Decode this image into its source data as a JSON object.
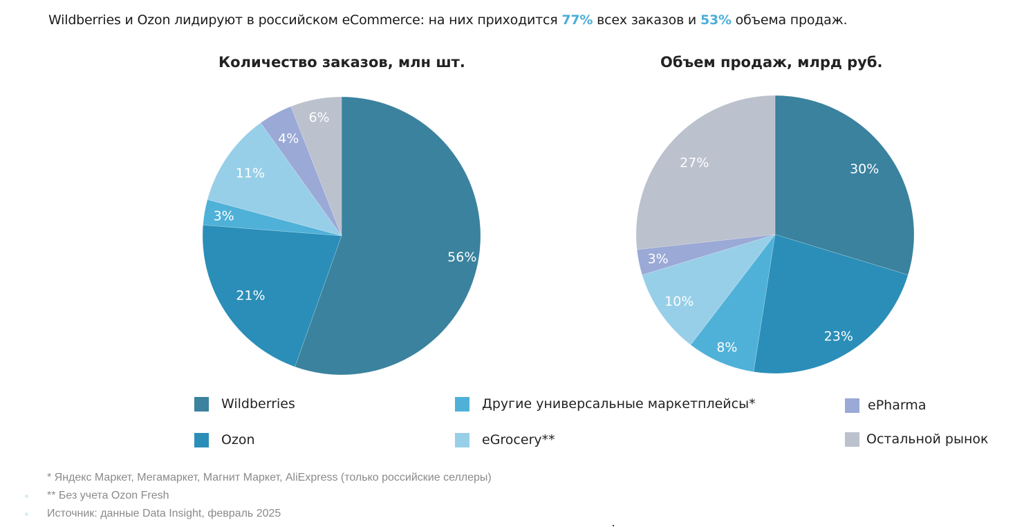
{
  "headline": {
    "part1": "Wildberries и Ozon лидируют в российском eCommerce: на них приходится ",
    "highlight1": "77%",
    "part2": " всех заказов и ",
    "highlight2": "53%",
    "part3": " объема продаж.",
    "highlight_color": "#4aaed9"
  },
  "chart_data": [
    {
      "type": "pie",
      "title": "Количество заказов, млн шт.",
      "categories": [
        "Wildberries",
        "Ozon",
        "Другие универсальные маркетплейсы*",
        "eGrocery**",
        "ePharma",
        "Остальной рынок"
      ],
      "values": [
        56,
        21,
        3,
        11,
        4,
        6
      ],
      "labels": [
        "56%",
        "21%",
        "3%",
        "11%",
        "4%",
        "6%"
      ],
      "unit": "%"
    },
    {
      "type": "pie",
      "title": "Объем продаж, млрд руб.",
      "categories": [
        "Wildberries",
        "Ozon",
        "Другие универсальные маркетплейсы*",
        "eGrocery**",
        "ePharma",
        "Остальной рынок"
      ],
      "values": [
        30,
        23,
        8,
        10,
        3,
        27
      ],
      "labels": [
        "30%",
        "23%",
        "8%",
        "10%",
        "3%",
        "27%"
      ],
      "unit": "%"
    }
  ],
  "legend": {
    "placement": "bottom",
    "items": [
      {
        "label": "Wildberries",
        "color": "#3a829e"
      },
      {
        "label": "Ozon",
        "color": "#2a8eb8"
      },
      {
        "label": "Другие универсальные маркетплейсы*",
        "color": "#4fb1d8"
      },
      {
        "label": "eGrocery**",
        "color": "#98cfe8"
      },
      {
        "label": "ePharma",
        "color": "#9aa9d6"
      },
      {
        "label": "Остальной рынок",
        "color": "#bbc1cd"
      }
    ]
  },
  "footnotes": [
    "* Яндекс Маркет, Мегамаркет, Магнит Маркет, AliExpress (только российские селлеры)",
    "** Без учета Ozon Fresh",
    "Источник: данные Data Insight, февраль 2025"
  ]
}
